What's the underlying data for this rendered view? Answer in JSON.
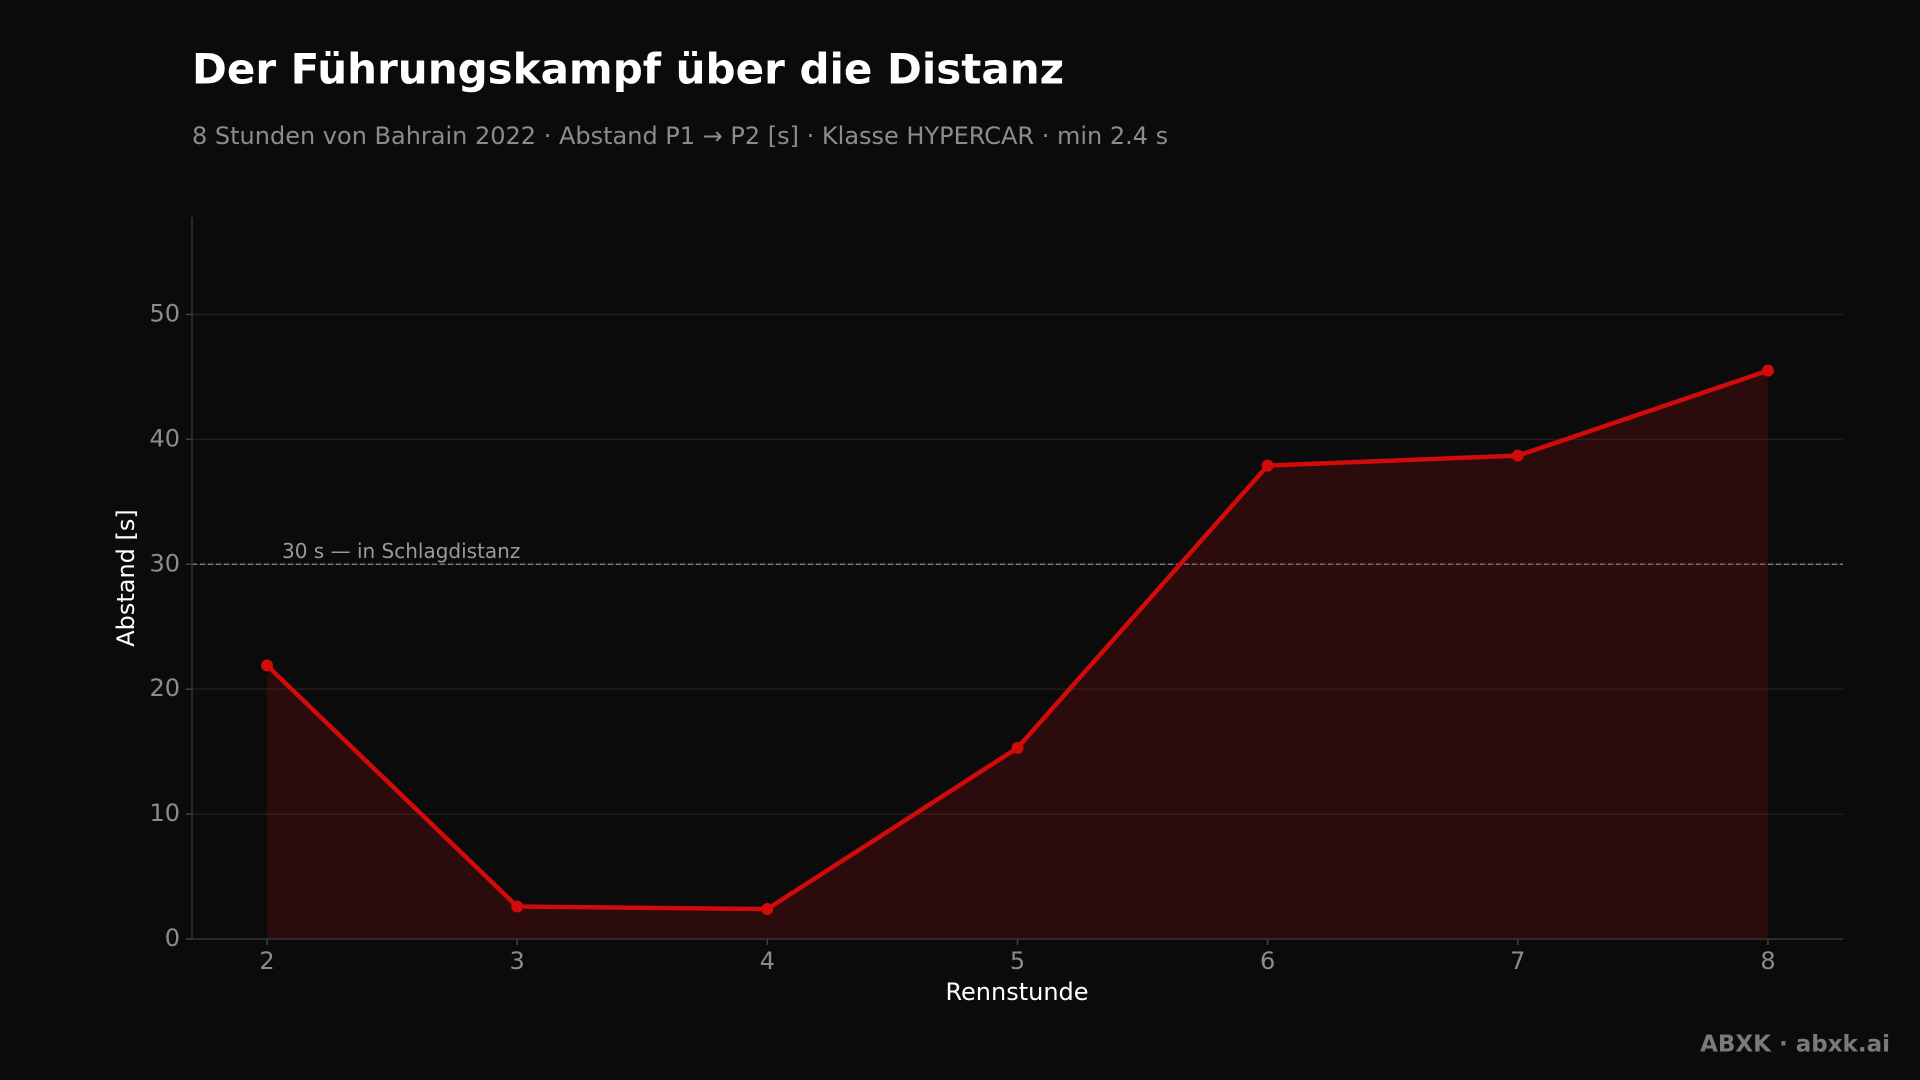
{
  "chart_data": {
    "type": "line",
    "title": "Der Führungskampf über die Distanz",
    "subtitle": "8 Stunden von Bahrain 2022 · Abstand P1 → P2 [s] · Klasse HYPERCAR · min 2.4 s",
    "x_label": "Rennstunde",
    "y_label": "Abstand [s]",
    "x": [
      2,
      3,
      4,
      5,
      6,
      7,
      8
    ],
    "series": [
      {
        "name": "Abstand P1 → P2",
        "color": "#d10a0a",
        "values": [
          21.9,
          2.6,
          2.4,
          15.3,
          37.9,
          38.7,
          45.5
        ]
      }
    ],
    "xlim": [
      1.7,
      8.3
    ],
    "ylim": [
      0,
      57.8
    ],
    "xticks": [
      2,
      3,
      4,
      5,
      6,
      7,
      8
    ],
    "yticks": [
      0,
      10,
      20,
      30,
      40,
      50
    ],
    "grid": true,
    "area_fill": true,
    "reference_line": {
      "value": 30,
      "label": "30 s — in Schlagdistanz"
    },
    "footer": "ABXK · abxk.ai"
  }
}
